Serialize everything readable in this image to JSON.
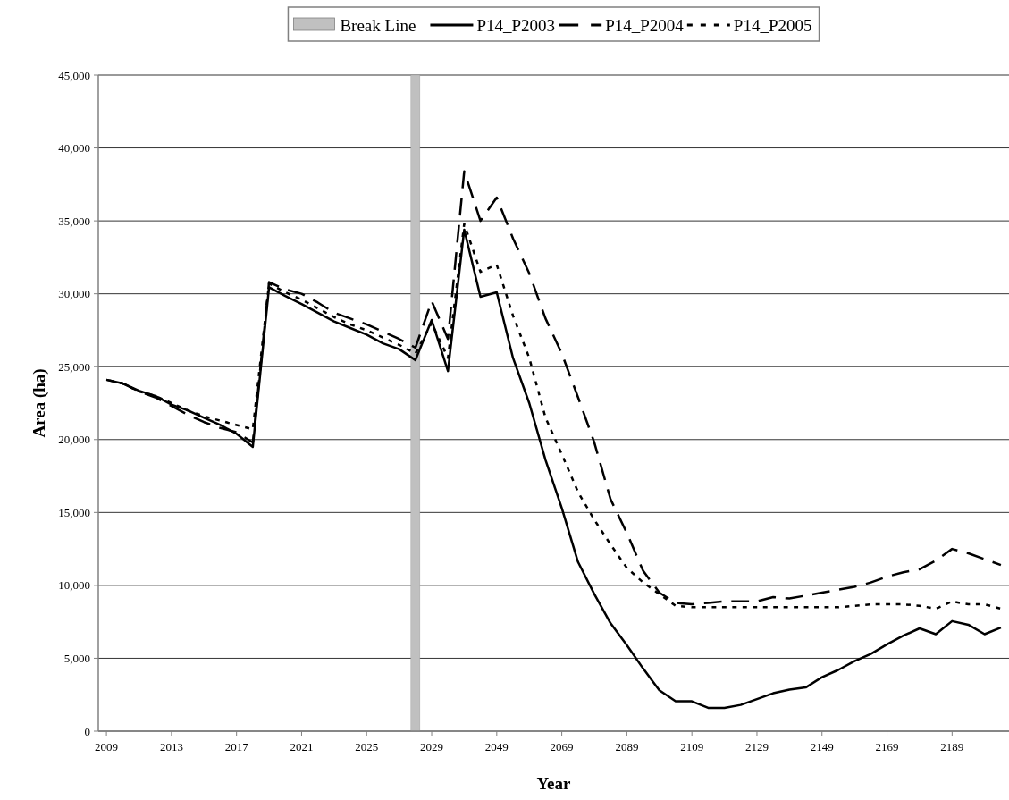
{
  "chart_data": {
    "type": "line",
    "xlabel": "Year",
    "ylabel": "Area (ha)",
    "categories": [
      "2009",
      null,
      null,
      null,
      "2013",
      null,
      null,
      null,
      "2017",
      null,
      null,
      null,
      "2021",
      null,
      null,
      null,
      "2025",
      null,
      null,
      null,
      "2029",
      null,
      null,
      null,
      "2049",
      null,
      null,
      null,
      "2069",
      null,
      null,
      null,
      "2089",
      null,
      null,
      null,
      "2109",
      null,
      null,
      null,
      "2129",
      null,
      null,
      null,
      "2149",
      null,
      null,
      null,
      "2169",
      null,
      null,
      null,
      "2189",
      null,
      null,
      null
    ],
    "ylim": [
      0,
      45000
    ],
    "yticks": [
      {
        "value": 0,
        "label": "0"
      },
      {
        "value": 5000,
        "label": "5,000"
      },
      {
        "value": 10000,
        "label": "10,000"
      },
      {
        "value": 15000,
        "label": "15,000"
      },
      {
        "value": 20000,
        "label": "20,000"
      },
      {
        "value": 25000,
        "label": "25,000"
      },
      {
        "value": 30000,
        "label": "30,000"
      },
      {
        "value": 35000,
        "label": "35,000"
      },
      {
        "value": 40000,
        "label": "40,000"
      },
      {
        "value": 45000,
        "label": "45,000"
      }
    ],
    "grid": "y",
    "legend": "top",
    "series": [
      {
        "name": "Break Line",
        "type": "bar",
        "color": "#c0c0c0",
        "values": [
          null,
          null,
          null,
          null,
          null,
          null,
          null,
          null,
          null,
          null,
          null,
          null,
          null,
          null,
          null,
          null,
          null,
          null,
          null,
          45000,
          null,
          null,
          null,
          null,
          null,
          null,
          null,
          null,
          null,
          null,
          null,
          null,
          null,
          null,
          null,
          null,
          null,
          null,
          null,
          null,
          null,
          null,
          null,
          null,
          null,
          null,
          null,
          null,
          null,
          null,
          null,
          null,
          null,
          null,
          null,
          null
        ]
      },
      {
        "name": "P14_P2003",
        "color": "#000000",
        "line_style": "solid",
        "values": [
          24100,
          23850,
          23350,
          23000,
          22400,
          22000,
          21500,
          21000,
          20400,
          19500,
          30450,
          29850,
          29300,
          28700,
          28100,
          27650,
          27200,
          26600,
          26200,
          25450,
          28200,
          24700,
          34400,
          29800,
          30100,
          25600,
          22500,
          18600,
          15300,
          11600,
          9400,
          7400,
          5900,
          4300,
          2800,
          2050,
          2050,
          1600,
          1600,
          1800,
          2200,
          2600,
          2850,
          3000,
          3700,
          4200,
          4800,
          5300,
          5950,
          6550,
          7050,
          6650,
          7550,
          7300,
          6650,
          7100
        ]
      },
      {
        "name": "P14_P2004",
        "color": "#000000",
        "line_style": "dashed",
        "values": [
          24100,
          23850,
          23300,
          22900,
          22300,
          21700,
          21200,
          20800,
          20500,
          19800,
          30800,
          30300,
          30000,
          29400,
          28700,
          28300,
          27900,
          27400,
          26900,
          26300,
          29500,
          26900,
          38400,
          35000,
          36600,
          33800,
          31400,
          28300,
          25900,
          22900,
          19800,
          15900,
          13600,
          11000,
          9500,
          8800,
          8700,
          8800,
          8900,
          8900,
          8900,
          9200,
          9100,
          9300,
          9500,
          9700,
          9900,
          10200,
          10600,
          10900,
          11100,
          11700,
          12500,
          12200,
          11800,
          11400
        ]
      },
      {
        "name": "P14_P2005",
        "color": "#000000",
        "line_style": "dotted",
        "values": [
          24100,
          23850,
          23300,
          23000,
          22500,
          22000,
          21600,
          21300,
          21000,
          20700,
          30700,
          30100,
          29600,
          29000,
          28400,
          27900,
          27500,
          27000,
          26500,
          25900,
          28000,
          25600,
          34800,
          31500,
          32000,
          28500,
          25600,
          21500,
          19000,
          16400,
          14500,
          12800,
          11200,
          10200,
          9400,
          8600,
          8500,
          8500,
          8500,
          8500,
          8500,
          8500,
          8500,
          8500,
          8500,
          8500,
          8600,
          8700,
          8700,
          8700,
          8600,
          8400,
          8900,
          8700,
          8700,
          8400
        ]
      }
    ]
  }
}
